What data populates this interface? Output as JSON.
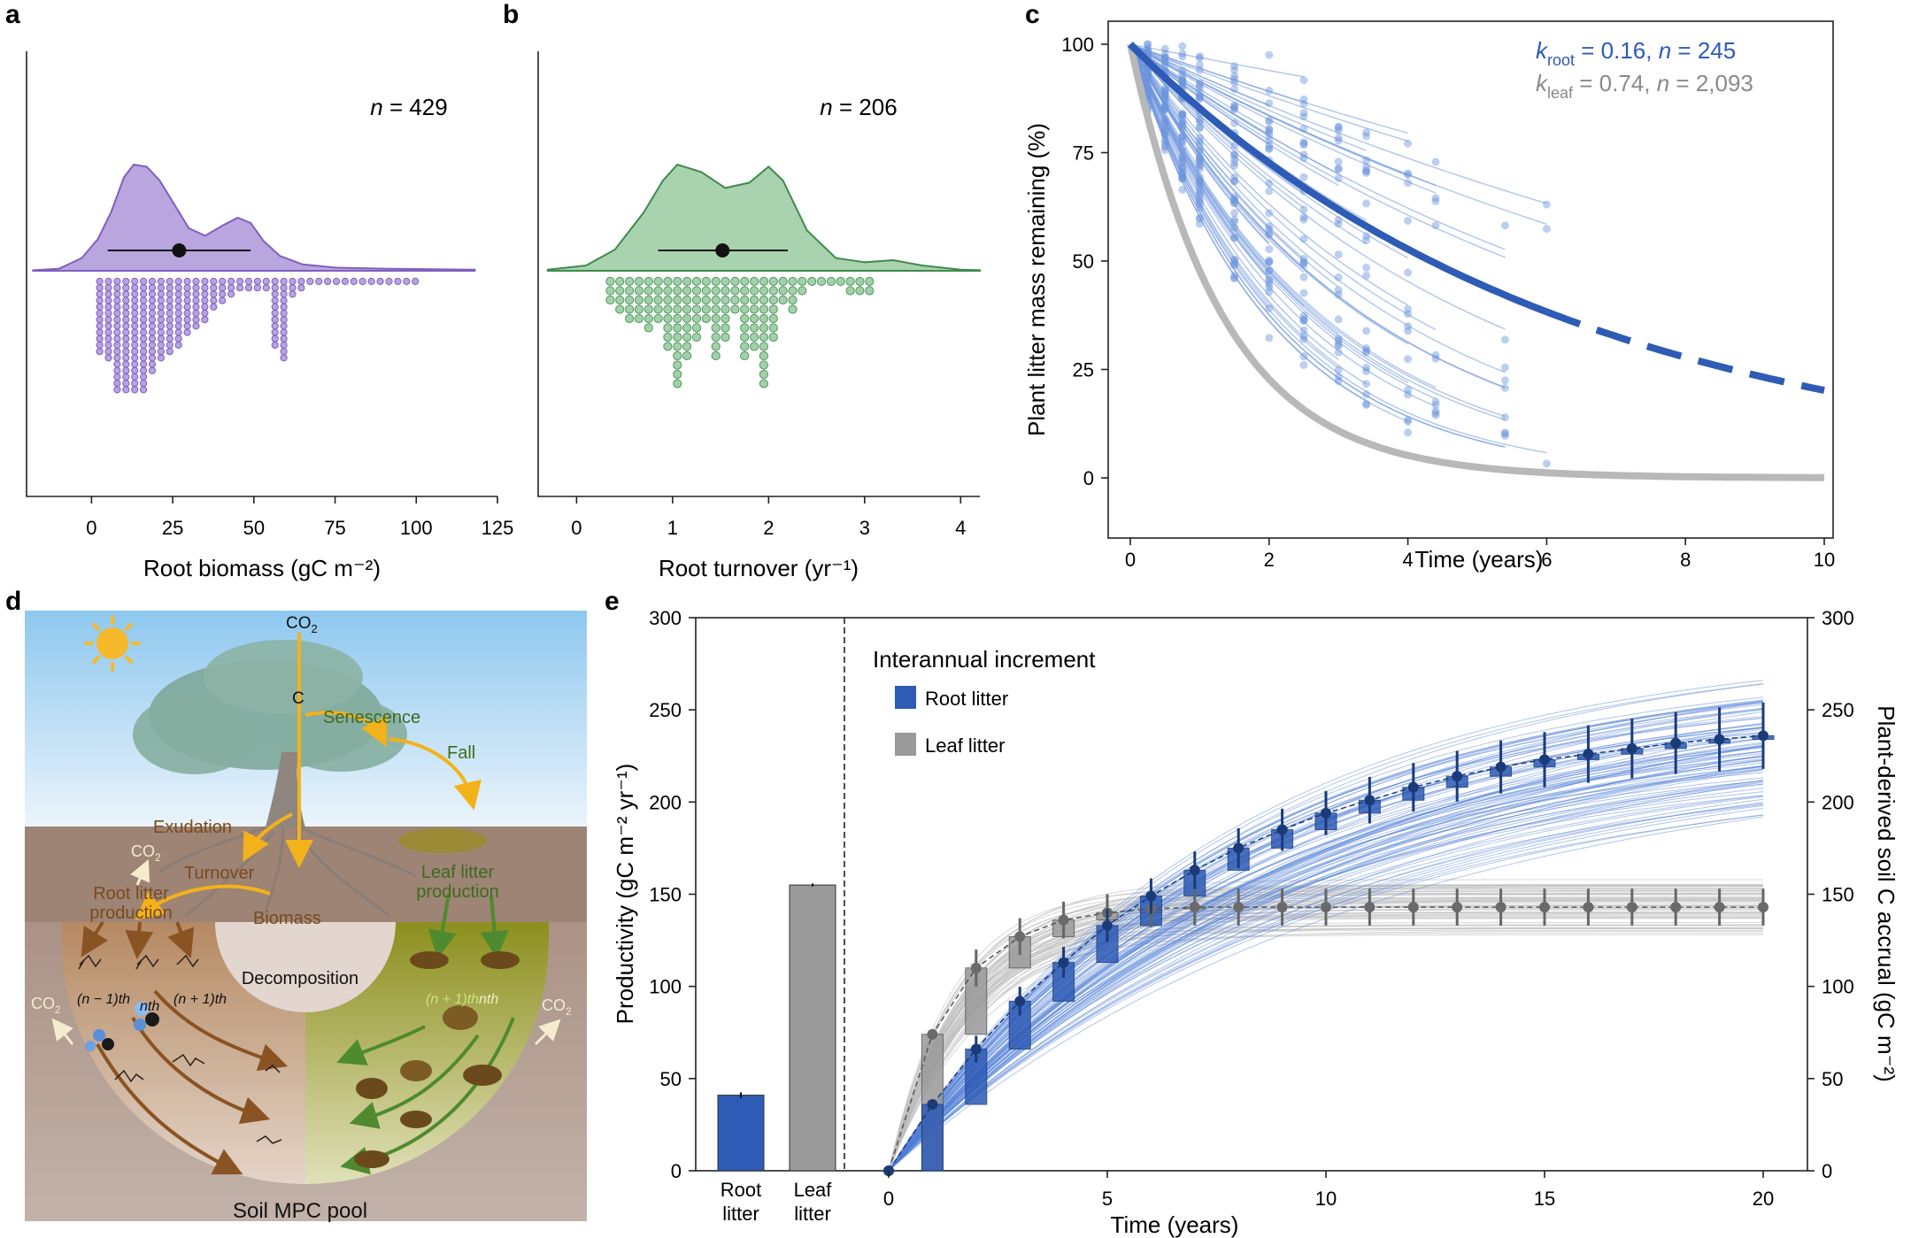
{
  "colors": {
    "purple": "#b9a6df",
    "purple_edge": "#7f5fbf",
    "green": "#a8d3ae",
    "green_edge": "#3f8a4e",
    "root_blue": "#2d5bb5",
    "root_light": "#6d95dc",
    "leaf_gray": "#9a9a9a",
    "leaf_light": "#c4c4c4",
    "sky_top": "#8ec8ef",
    "sky_bottom": "#e7f3fb",
    "soil_top": "#a58a78",
    "soil_bottom": "#bfaea4",
    "leaf_half": "#9aa02f",
    "root_half": "#a67c52",
    "arrow_orange": "#f3b21a"
  },
  "chart_data": [
    {
      "panel": "a",
      "type": "density-dotplot",
      "n_text": "n = 429",
      "xlabel": "Root biomass (gC m⁻²)",
      "xlim": [
        -20,
        125
      ],
      "xticks": [
        "0",
        "25",
        "50",
        "75",
        "100",
        "125"
      ],
      "mean": 27,
      "sd_range": [
        5,
        49
      ],
      "density": [
        [
          -18,
          0.005
        ],
        [
          -10,
          0.02
        ],
        [
          -3,
          0.12
        ],
        [
          2,
          0.3
        ],
        [
          6,
          0.55
        ],
        [
          10,
          0.88
        ],
        [
          13,
          1.0
        ],
        [
          17,
          0.98
        ],
        [
          21,
          0.85
        ],
        [
          26,
          0.6
        ],
        [
          30,
          0.4
        ],
        [
          35,
          0.33
        ],
        [
          40,
          0.42
        ],
        [
          45,
          0.5
        ],
        [
          49,
          0.45
        ],
        [
          53,
          0.28
        ],
        [
          58,
          0.14
        ],
        [
          65,
          0.06
        ],
        [
          75,
          0.03
        ],
        [
          90,
          0.02
        ],
        [
          105,
          0.015
        ],
        [
          118,
          0.01
        ]
      ],
      "dot_columns": [
        12,
        13,
        18,
        18,
        18,
        18,
        15,
        13,
        12,
        11,
        9,
        8,
        7,
        5,
        4,
        3,
        2,
        2,
        2,
        2,
        11,
        13,
        3,
        2,
        1,
        1,
        1,
        1,
        1,
        1,
        1,
        1,
        1,
        1,
        1,
        1,
        1
      ],
      "dot_bin": 2.7
    },
    {
      "panel": "b",
      "type": "density-dotplot",
      "n_text": "n = 206",
      "xlabel": "Root turnover (yr⁻¹)",
      "xlim": [
        -0.4,
        4.2
      ],
      "xticks": [
        "0",
        "1",
        "2",
        "3",
        "4"
      ],
      "mean": 1.52,
      "sd_range": [
        0.85,
        2.2
      ],
      "density": [
        [
          -0.3,
          0.01
        ],
        [
          0.1,
          0.05
        ],
        [
          0.4,
          0.2
        ],
        [
          0.7,
          0.55
        ],
        [
          0.9,
          0.85
        ],
        [
          1.05,
          1.0
        ],
        [
          1.3,
          0.93
        ],
        [
          1.55,
          0.78
        ],
        [
          1.8,
          0.83
        ],
        [
          2.0,
          0.98
        ],
        [
          2.15,
          0.85
        ],
        [
          2.4,
          0.38
        ],
        [
          2.7,
          0.12
        ],
        [
          3.0,
          0.08
        ],
        [
          3.3,
          0.1
        ],
        [
          3.6,
          0.05
        ],
        [
          4.0,
          0.01
        ],
        [
          4.2,
          0.005
        ]
      ],
      "dot_columns": [
        3,
        4,
        5,
        5,
        6,
        5,
        8,
        12,
        9,
        7,
        5,
        9,
        7,
        4,
        9,
        8,
        12,
        7,
        3,
        4,
        2,
        1,
        1,
        1,
        1,
        2,
        2,
        2
      ],
      "dot_bin": 0.1
    },
    {
      "panel": "c",
      "type": "line-scatter",
      "legend": [
        {
          "k": "k",
          "sub": "root",
          "text": " = 0.16, ",
          "n": "n",
          "n_text": " = 245",
          "color": "#2d5bb5"
        },
        {
          "k": "k",
          "sub": "leaf",
          "text": " = 0.74, ",
          "n": "n",
          "n_text": " = 2,093",
          "color": "#8a8a8a"
        }
      ],
      "xlabel": "Time (years)",
      "ylabel": "Plant litter mass remaining (%)",
      "xlim": [
        0,
        10
      ],
      "ylim": [
        0,
        100
      ],
      "xticks": [
        "0",
        "2",
        "4",
        "6",
        "8",
        "10"
      ],
      "yticks": [
        "0",
        "25",
        "50",
        "75",
        "100"
      ],
      "k_root": 0.16,
      "k_leaf": 0.74,
      "root_solid_until": 6.0,
      "observation_times": [
        0.25,
        0.5,
        0.75,
        1.0,
        1.5,
        2.0,
        2.5,
        3.0,
        3.4,
        4.0,
        4.4,
        5.4,
        6.0
      ]
    },
    {
      "panel": "e",
      "type": "bar-line",
      "left_bars": [
        {
          "label": [
            "Root",
            "litter"
          ],
          "value": 41,
          "err": 1.5,
          "color": "#2d5bb5"
        },
        {
          "label": [
            "Leaf",
            "litter"
          ],
          "value": 155,
          "err": 0.8,
          "color": "#9a9a9a"
        }
      ],
      "ylabel_left": "Productivity (gC m⁻² yr⁻¹)",
      "ylabel_right": "Plant-derived soil C accrual (gC m⁻²)",
      "xlabel": "Time (years)",
      "xlim": [
        0,
        20
      ],
      "ylim": [
        0,
        300
      ],
      "xticks": [
        "0",
        "5",
        "10",
        "15",
        "20"
      ],
      "yticks": [
        "0",
        "50",
        "100",
        "150",
        "200",
        "250",
        "300"
      ],
      "legend_title": "Interannual increment",
      "legend": [
        {
          "name": "Root litter",
          "color": "#2d5bb5"
        },
        {
          "name": "Leaf litter",
          "color": "#9a9a9a"
        }
      ],
      "root_accrual": [
        0,
        36,
        66,
        92,
        113,
        133,
        149,
        163,
        175,
        185,
        194,
        201,
        208,
        214,
        219,
        223,
        226,
        229,
        232,
        234,
        236
      ],
      "leaf_accrual": [
        0,
        74,
        110,
        127,
        136,
        140,
        142,
        143,
        143,
        143,
        143,
        143,
        143,
        143,
        143,
        143,
        143,
        143,
        143,
        143,
        143
      ]
    }
  ],
  "panel_labels": {
    "a": "a",
    "b": "b",
    "c": "c",
    "d": "d",
    "e": "e"
  },
  "diagram": {
    "co2_top": "CO",
    "sub2": "2",
    "c_label": "C",
    "senescence": "Senescence",
    "fall": "Fall",
    "exudation": "Exudation",
    "co2_left": "CO",
    "turnover": "Turnover",
    "root_litter_production": [
      "Root litter",
      "production"
    ],
    "biomass": "Biomass",
    "leaf_litter_production": [
      "Leaf litter",
      "production"
    ],
    "decomposition": "Decomposition",
    "n_minus": "(n − 1)th",
    "n_th_left": "nth",
    "n_plus_left": "(n + 1)th",
    "n_plus_right": "(n + 1)th",
    "n_th_right": "nth",
    "co2_bl": "CO",
    "co2_br": "CO",
    "pool": "Soil MPC pool"
  }
}
